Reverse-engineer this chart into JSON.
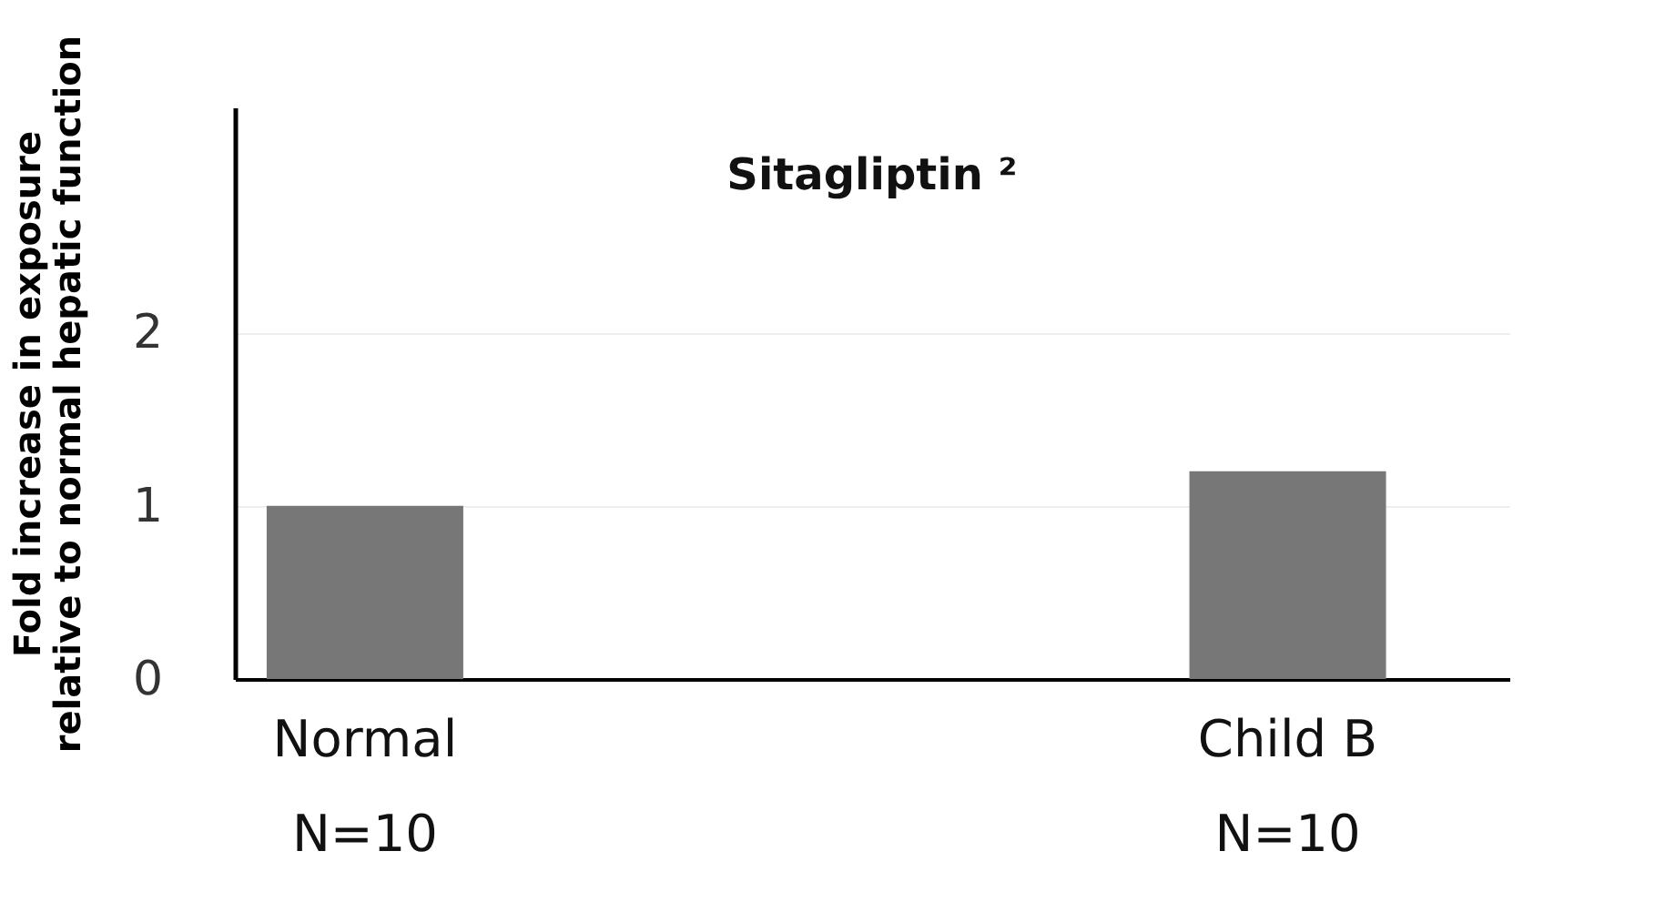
{
  "chart_data": {
    "type": "bar",
    "title": "Sitagliptin ²",
    "ylabel": "Fold increase in exposure\nrelative to normal hepatic function",
    "categories": [
      "Normal\nN=10",
      "Child B\nN=10"
    ],
    "values": [
      1.0,
      1.2
    ],
    "color": "#777777",
    "ylim": [
      0,
      3.3
    ],
    "yticks": [
      0,
      1,
      2
    ],
    "grid": "y"
  }
}
